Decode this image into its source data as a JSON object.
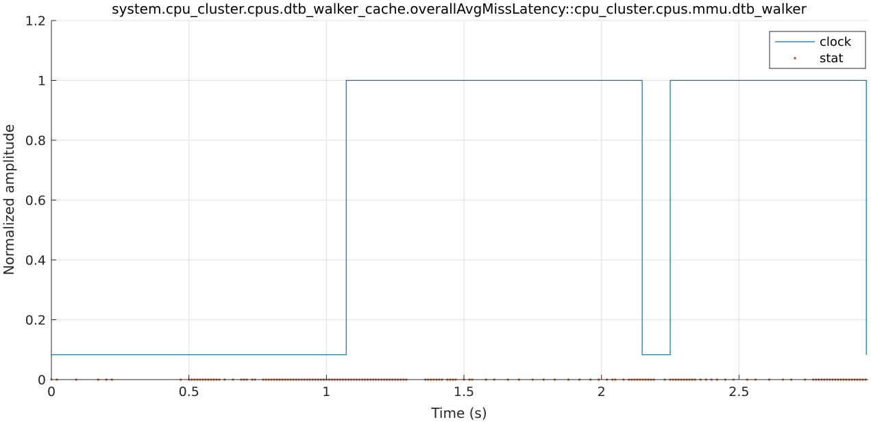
{
  "chart_data": {
    "type": "line",
    "title": "system.cpu_cluster.cpus.dtb_walker_cache.overallAvgMissLatency::cpu_cluster.cpus.mmu.dtb_walker",
    "xlabel": "Time (s)",
    "ylabel": "Normalized amplitude",
    "xlim": [
      0,
      2.97
    ],
    "ylim": [
      0,
      1.2
    ],
    "xticks": [
      0,
      0.5,
      1,
      1.5,
      2,
      2.5
    ],
    "xtick_labels": [
      "0",
      "0.5",
      "1",
      "1.5",
      "2",
      "2.5"
    ],
    "yticks": [
      0,
      0.2,
      0.4,
      0.6,
      0.8,
      1,
      1.2
    ],
    "ytick_labels": [
      "0",
      "0.2",
      "0.4",
      "0.6",
      "0.8",
      "1",
      "1.2"
    ],
    "grid": true,
    "legend_position": "top-right",
    "series": [
      {
        "name": "clock",
        "style": "step-line",
        "color": "#0072BD",
        "x": [
          0,
          1.072,
          1.072,
          2.148,
          2.148,
          2.25,
          2.25,
          2.963,
          2.963
        ],
        "y": [
          0.083,
          0.083,
          1,
          1,
          0.083,
          0.083,
          1,
          1,
          0.083
        ]
      },
      {
        "name": "stat",
        "style": "markers",
        "color": "#D95319",
        "y_value": 0,
        "x": [
          0.0,
          0.02,
          0.09,
          0.17,
          0.2,
          0.22,
          0.47,
          0.5,
          0.51,
          0.52,
          0.53,
          0.54,
          0.55,
          0.56,
          0.57,
          0.58,
          0.59,
          0.6,
          0.61,
          0.63,
          0.66,
          0.69,
          0.7,
          0.71,
          0.73,
          0.74,
          0.77,
          0.78,
          0.79,
          0.8,
          0.81,
          0.82,
          0.83,
          0.84,
          0.85,
          0.86,
          0.87,
          0.88,
          0.89,
          0.9,
          0.91,
          0.92,
          0.93,
          0.94,
          0.95,
          0.96,
          0.97,
          0.98,
          0.99,
          1.0,
          1.01,
          1.02,
          1.03,
          1.04,
          1.05,
          1.06,
          1.07,
          1.08,
          1.09,
          1.1,
          1.11,
          1.12,
          1.13,
          1.14,
          1.15,
          1.16,
          1.17,
          1.18,
          1.19,
          1.2,
          1.21,
          1.22,
          1.23,
          1.24,
          1.25,
          1.26,
          1.27,
          1.28,
          1.29,
          1.36,
          1.37,
          1.38,
          1.39,
          1.4,
          1.41,
          1.42,
          1.44,
          1.45,
          1.46,
          1.47,
          1.5,
          1.52,
          1.53,
          1.58,
          1.61,
          1.66,
          1.7,
          1.75,
          1.79,
          1.83,
          1.88,
          1.92,
          1.96,
          1.99,
          2.02,
          2.04,
          2.05,
          2.08,
          2.1,
          2.11,
          2.12,
          2.13,
          2.14,
          2.15,
          2.16,
          2.17,
          2.18,
          2.19,
          2.23,
          2.25,
          2.26,
          2.27,
          2.28,
          2.29,
          2.3,
          2.31,
          2.32,
          2.33,
          2.34,
          2.36,
          2.38,
          2.4,
          2.42,
          2.45,
          2.48,
          2.53,
          2.56,
          2.61,
          2.66,
          2.69,
          2.74,
          2.77,
          2.78,
          2.79,
          2.8,
          2.81,
          2.82,
          2.83,
          2.84,
          2.85,
          2.86,
          2.87,
          2.88,
          2.89,
          2.9,
          2.91,
          2.92,
          2.93,
          2.94,
          2.95,
          2.96
        ]
      }
    ]
  }
}
